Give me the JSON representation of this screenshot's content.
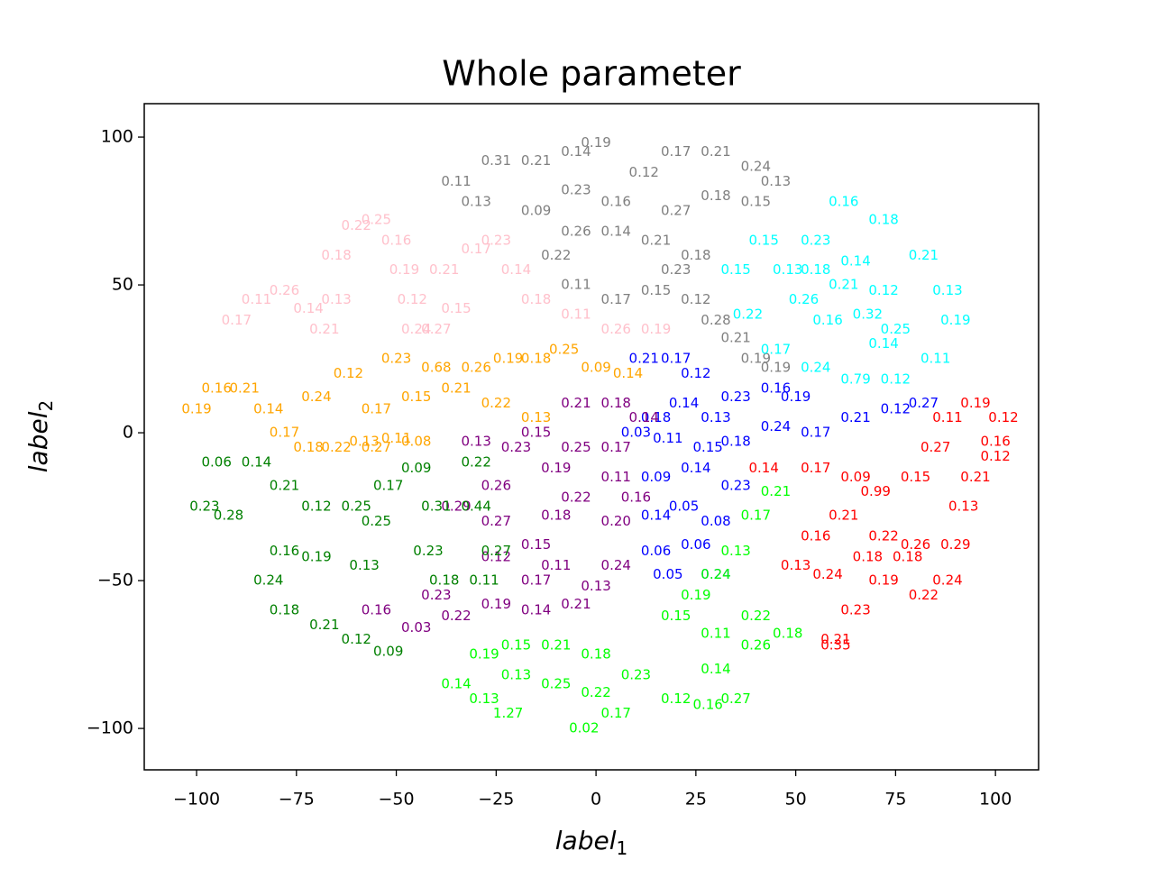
{
  "chart_data": {
    "type": "scatter-text",
    "title": "Whole parameter",
    "xlabel": {
      "text": "label",
      "subscript": "1"
    },
    "ylabel": {
      "text": "label",
      "subscript": "2"
    },
    "xlim": [
      -113.1,
      110.8
    ],
    "ylim": [
      -114.0,
      111.3
    ],
    "xticks": [
      {
        "value": -100,
        "label": "−100"
      },
      {
        "value": -75,
        "label": "−75"
      },
      {
        "value": -50,
        "label": "−50"
      },
      {
        "value": -25,
        "label": "−25"
      },
      0,
      25,
      50,
      75,
      100
    ],
    "yticks": [
      {
        "value": -100,
        "label": "−100"
      },
      {
        "value": -50,
        "label": "−50"
      },
      0,
      50,
      100
    ],
    "series": [
      {
        "color": "#808080",
        "x": [
          -35,
          -25,
          -15,
          -5,
          0,
          -30,
          -15,
          -5,
          5,
          12,
          20,
          30,
          40,
          45,
          40,
          30,
          20,
          15,
          5,
          -5,
          -10,
          -5,
          5,
          15,
          20,
          25,
          25,
          30,
          35,
          40,
          45
        ],
        "values": [
          85,
          92,
          92,
          95,
          98,
          78,
          75,
          82,
          78,
          88,
          95,
          95,
          90,
          85,
          78,
          80,
          75,
          65,
          68,
          68,
          60,
          50,
          45,
          48,
          55,
          60,
          45,
          38,
          32,
          25,
          22
        ],
        "value_labels": [
          "0.11",
          "0.31",
          "0.21",
          "0.14",
          "0.19",
          "0.13",
          "0.09",
          "0.23",
          "0.16",
          "0.12",
          "0.17",
          "0.21",
          "0.24",
          "0.13",
          "0.15",
          "0.18",
          "0.27",
          "0.21",
          "0.14",
          "0.26",
          "0.22",
          "0.11",
          "0.17",
          "0.15",
          "0.23",
          "0.18",
          "0.12",
          "0.28",
          "0.21",
          "0.19",
          "0.19"
        ]
      },
      {
        "color": "#ffc0cb",
        "x": [
          -90,
          -85,
          -78,
          -72,
          -68,
          -65,
          -65,
          -60,
          -55,
          -50,
          -48,
          -46,
          -45,
          -40,
          -35,
          -38,
          -30,
          -25,
          -20,
          -15,
          -5,
          5,
          15
        ],
        "values": [
          38,
          45,
          48,
          42,
          35,
          45,
          60,
          70,
          72,
          65,
          55,
          45,
          35,
          35,
          42,
          55,
          62,
          65,
          55,
          45,
          40,
          35,
          35
        ],
        "value_labels": [
          "0.17",
          "0.11",
          "0.26",
          "0.14",
          "0.21",
          "0.13",
          "0.18",
          "0.22",
          "0.25",
          "0.16",
          "0.19",
          "0.12",
          "0.24",
          "0.27",
          "0.15",
          "0.21",
          "0.17",
          "0.23",
          "0.14",
          "0.18",
          "0.11",
          "0.26",
          "0.19"
        ]
      },
      {
        "color": "#00ffff",
        "x": [
          62,
          72,
          82,
          88,
          90,
          85,
          75,
          65,
          55,
          45,
          38,
          35,
          42,
          55,
          65,
          72,
          68,
          58,
          52,
          48,
          55,
          62,
          75,
          72
        ],
        "values": [
          78,
          72,
          60,
          48,
          38,
          25,
          18,
          18,
          22,
          28,
          40,
          55,
          65,
          65,
          58,
          48,
          40,
          38,
          45,
          55,
          55,
          50,
          35,
          30
        ],
        "value_labels": [
          "0.16",
          "0.18",
          "0.21",
          "0.13",
          "0.19",
          "0.11",
          "0.12",
          "0.79",
          "0.24",
          "0.17",
          "0.22",
          "0.15",
          "0.15",
          "0.23",
          "0.14",
          "0.12",
          "0.32",
          "0.16",
          "0.26",
          "0.13",
          "0.18",
          "0.21",
          "0.25",
          "0.14"
        ]
      },
      {
        "color": "#ffa500",
        "x": [
          -100,
          -95,
          -88,
          -82,
          -78,
          -72,
          -65,
          -58,
          -50,
          -45,
          -70,
          -62,
          -50,
          -40,
          -45,
          -55,
          -35,
          -30,
          -22,
          -25,
          -15,
          -15,
          -8,
          0,
          8,
          -55
        ],
        "values": [
          8,
          15,
          15,
          8,
          0,
          -5,
          -5,
          -3,
          -2,
          -3,
          12,
          20,
          25,
          22,
          12,
          8,
          15,
          22,
          25,
          10,
          5,
          25,
          28,
          22,
          20,
          -5
        ],
        "value_labels": [
          "0.19",
          "0.16",
          "0.21",
          "0.14",
          "0.17",
          "0.18",
          "0.22",
          "0.13",
          "0.11",
          "0.08",
          "0.24",
          "0.12",
          "0.23",
          "0.68",
          "0.15",
          "0.17",
          "0.21",
          "0.26",
          "0.19",
          "0.22",
          "0.13",
          "0.18",
          "0.25",
          "0.09",
          "0.14",
          "0.27"
        ]
      },
      {
        "color": "#0000ff",
        "x": [
          12,
          20,
          25,
          22,
          15,
          10,
          18,
          28,
          30,
          35,
          45,
          50,
          45,
          55,
          65,
          75,
          82,
          35,
          15,
          25,
          35,
          22,
          30,
          15,
          15,
          25,
          18,
          30
        ],
        "values": [
          25,
          25,
          20,
          10,
          5,
          0,
          -2,
          -5,
          5,
          12,
          15,
          12,
          2,
          0,
          5,
          8,
          10,
          -3,
          -15,
          -12,
          -18,
          -25,
          -30,
          -28,
          -40,
          -38,
          -48,
          -48
        ],
        "value_labels": [
          "0.21",
          "0.17",
          "0.12",
          "0.14",
          "0.18",
          "0.03",
          "0.11",
          "0.15",
          "0.13",
          "0.23",
          "0.16",
          "0.19",
          "0.24",
          "0.17",
          "0.21",
          "0.12",
          "0.27",
          "0.18",
          "0.09",
          "0.14",
          "0.23",
          "0.05",
          "0.08",
          "0.14",
          "0.06",
          "0.06",
          "0.05",
          "0.24"
        ]
      },
      {
        "color": "#800080",
        "x": [
          -15,
          -5,
          5,
          12,
          5,
          -5,
          -20,
          -30,
          -10,
          5,
          10,
          -5,
          -25,
          -35,
          -25,
          -10,
          5,
          -15,
          -25,
          -10,
          5,
          0,
          -15,
          -5,
          -25,
          -15,
          -35,
          -45,
          -40,
          -55
        ],
        "values": [
          0,
          10,
          10,
          5,
          -5,
          -5,
          -5,
          -3,
          -12,
          -15,
          -22,
          -22,
          -18,
          -25,
          -30,
          -28,
          -30,
          -38,
          -42,
          -45,
          -45,
          -52,
          -50,
          -58,
          -58,
          -60,
          -62,
          -66,
          -55,
          -60
        ],
        "value_labels": [
          "0.15",
          "0.21",
          "0.18",
          "0.14",
          "0.17",
          "0.25",
          "0.23",
          "0.13",
          "0.19",
          "0.11",
          "0.16",
          "0.22",
          "0.26",
          "0.29",
          "0.27",
          "0.18",
          "0.20",
          "0.15",
          "0.12",
          "0.11",
          "0.24",
          "0.13",
          "0.17",
          "0.21",
          "0.19",
          "0.14",
          "0.22",
          "0.03",
          "0.23",
          "0.16"
        ]
      },
      {
        "color": "#008000",
        "x": [
          -95,
          -85,
          -78,
          -70,
          -60,
          -52,
          -45,
          -40,
          -42,
          -38,
          -28,
          -25,
          -30,
          -30,
          -98,
          -92,
          -55,
          -58,
          -70,
          -78,
          -82,
          -78,
          -68,
          -60,
          -52
        ],
        "values": [
          -10,
          -10,
          -18,
          -25,
          -25,
          -18,
          -12,
          -25,
          -40,
          -50,
          -50,
          -40,
          -25,
          -10,
          -25,
          -28,
          -30,
          -45,
          -42,
          -40,
          -50,
          -60,
          -65,
          -70,
          -74
        ],
        "value_labels": [
          "0.06",
          "0.14",
          "0.21",
          "0.12",
          "0.25",
          "0.17",
          "0.09",
          "0.31",
          "0.23",
          "0.18",
          "0.11",
          "0.27",
          "0.44",
          "0.22",
          "0.23",
          "0.28",
          "0.25",
          "0.13",
          "0.19",
          "0.16",
          "0.24",
          "0.18",
          "0.21",
          "0.12",
          "0.09"
        ]
      },
      {
        "color": "#00ff00",
        "x": [
          45,
          40,
          35,
          30,
          25,
          20,
          30,
          40,
          48,
          40,
          30,
          35,
          28,
          20,
          10,
          0,
          -10,
          -20,
          -28,
          -20,
          -10,
          0,
          5,
          -3,
          -35,
          -28,
          -22
        ],
        "values": [
          -20,
          -28,
          -40,
          -48,
          -55,
          -62,
          -68,
          -72,
          -68,
          -62,
          -80,
          -90,
          -92,
          -90,
          -82,
          -75,
          -72,
          -72,
          -75,
          -82,
          -85,
          -88,
          -95,
          -100,
          -85,
          -90,
          -95
        ],
        "value_labels": [
          "0.21",
          "0.17",
          "0.13",
          "0.24",
          "0.19",
          "0.15",
          "0.11",
          "0.26",
          "0.18",
          "0.22",
          "0.14",
          "0.27",
          "0.16",
          "0.12",
          "0.23",
          "0.18",
          "0.21",
          "0.15",
          "0.19",
          "0.13",
          "0.25",
          "0.22",
          "0.17",
          "0.02",
          "0.14",
          "0.13",
          "1.27"
        ]
      },
      {
        "color": "#ff0000",
        "x": [
          42,
          55,
          65,
          70,
          62,
          55,
          50,
          58,
          68,
          72,
          80,
          85,
          88,
          95,
          102,
          100,
          95,
          92,
          90,
          88,
          82,
          78,
          80,
          72,
          65,
          60,
          60,
          100
        ],
        "values": [
          -12,
          -12,
          -15,
          -20,
          -28,
          -35,
          -45,
          -48,
          -42,
          -35,
          -15,
          -5,
          5,
          10,
          5,
          -3,
          -15,
          -25,
          -38,
          -50,
          -55,
          -42,
          -38,
          -50,
          -60,
          -70,
          -72,
          -8
        ],
        "value_labels": [
          "0.14",
          "0.17",
          "0.09",
          "0.99",
          "0.21",
          "0.16",
          "0.13",
          "0.24",
          "0.18",
          "0.22",
          "0.15",
          "0.27",
          "0.11",
          "0.19",
          "0.12",
          "0.16",
          "0.21",
          "0.13",
          "0.29",
          "0.24",
          "0.22",
          "0.18",
          "0.26",
          "0.19",
          "0.23",
          "0.21",
          "0.35",
          "0.12"
        ]
      }
    ]
  }
}
